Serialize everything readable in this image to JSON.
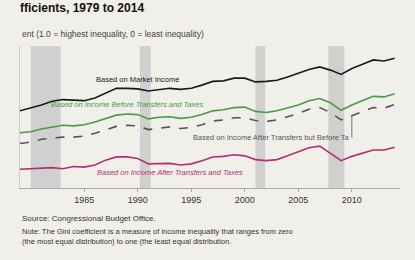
{
  "chart_data": {
    "type": "line",
    "title": "fficients, 1979 to 2014",
    "subtitle": "ent (1.0 = highest inequality, 0 = least inequality)",
    "source": "Source: Congressional Budget Office.",
    "note": "Note: The Gini coefficient is a measure of income inequality that ranges from zero (the most equal distribution) to one (the least equal distribution.",
    "x": [
      1979,
      1980,
      1981,
      1982,
      1983,
      1984,
      1985,
      1986,
      1987,
      1988,
      1989,
      1990,
      1991,
      1992,
      1993,
      1994,
      1995,
      1996,
      1997,
      1998,
      1999,
      2000,
      2001,
      2002,
      2003,
      2004,
      2005,
      2006,
      2007,
      2008,
      2009,
      2010,
      2011,
      2012,
      2013,
      2014
    ],
    "series": [
      {
        "name": "Based on Market Income",
        "color": "#1a1a1a",
        "line_style": "solid",
        "values": [
          0.479,
          0.484,
          0.49,
          0.497,
          0.5,
          0.499,
          0.498,
          0.503,
          0.512,
          0.521,
          0.521,
          0.52,
          0.516,
          0.519,
          0.521,
          0.519,
          0.521,
          0.527,
          0.534,
          0.535,
          0.54,
          0.54,
          0.533,
          0.534,
          0.536,
          0.542,
          0.549,
          0.556,
          0.561,
          0.555,
          0.547,
          0.558,
          0.566,
          0.574,
          0.572,
          0.577
        ]
      },
      {
        "name": "Based on Income Before Transfers and Taxes",
        "color": "#4a9a4a",
        "line_style": "solid",
        "values": [
          0.438,
          0.44,
          0.445,
          0.449,
          0.452,
          0.451,
          0.453,
          0.458,
          0.464,
          0.471,
          0.473,
          0.472,
          0.464,
          0.467,
          0.468,
          0.465,
          0.467,
          0.472,
          0.479,
          0.481,
          0.485,
          0.486,
          0.478,
          0.476,
          0.479,
          0.485,
          0.49,
          0.498,
          0.502,
          0.494,
          0.48,
          0.49,
          0.498,
          0.506,
          0.505,
          0.511
        ]
      },
      {
        "name": "Based on Income After Transfers but Before Ta",
        "color": "#555555",
        "line_style": "dashed",
        "values": [
          0.418,
          0.421,
          0.426,
          0.428,
          0.43,
          0.43,
          0.432,
          0.437,
          0.443,
          0.45,
          0.452,
          0.451,
          0.444,
          0.447,
          0.449,
          0.446,
          0.448,
          0.453,
          0.46,
          0.462,
          0.466,
          0.466,
          0.461,
          0.459,
          0.462,
          0.468,
          0.474,
          0.482,
          0.485,
          0.476,
          0.462,
          0.47,
          0.478,
          0.485,
          0.484,
          0.491
        ]
      },
      {
        "name": "Based on Income After Transfers and Taxes",
        "color": "#b03070",
        "line_style": "solid",
        "values": [
          0.37,
          0.371,
          0.373,
          0.373,
          0.371,
          0.375,
          0.374,
          0.378,
          0.387,
          0.393,
          0.393,
          0.39,
          0.38,
          0.381,
          0.381,
          0.378,
          0.38,
          0.386,
          0.393,
          0.394,
          0.397,
          0.395,
          0.388,
          0.386,
          0.388,
          0.395,
          0.402,
          0.41,
          0.413,
          0.4,
          0.386,
          0.394,
          0.4,
          0.406,
          0.406,
          0.411
        ]
      }
    ],
    "bands": {
      "ranges": [
        [
          1980.0,
          1982.8
        ],
        [
          1990.2,
          1991.2
        ],
        [
          2001.0,
          2001.9
        ],
        [
          2007.8,
          2009.3
        ]
      ],
      "color": "#d0d0d0"
    },
    "background_color": "#f0efea",
    "xlim": [
      1979,
      2014.5
    ],
    "xticks": [
      1985,
      1990,
      1995,
      2000,
      2005,
      2010
    ],
    "ylim": [
      0.335,
      0.6
    ],
    "tick_labels": "x",
    "grid": false
  }
}
